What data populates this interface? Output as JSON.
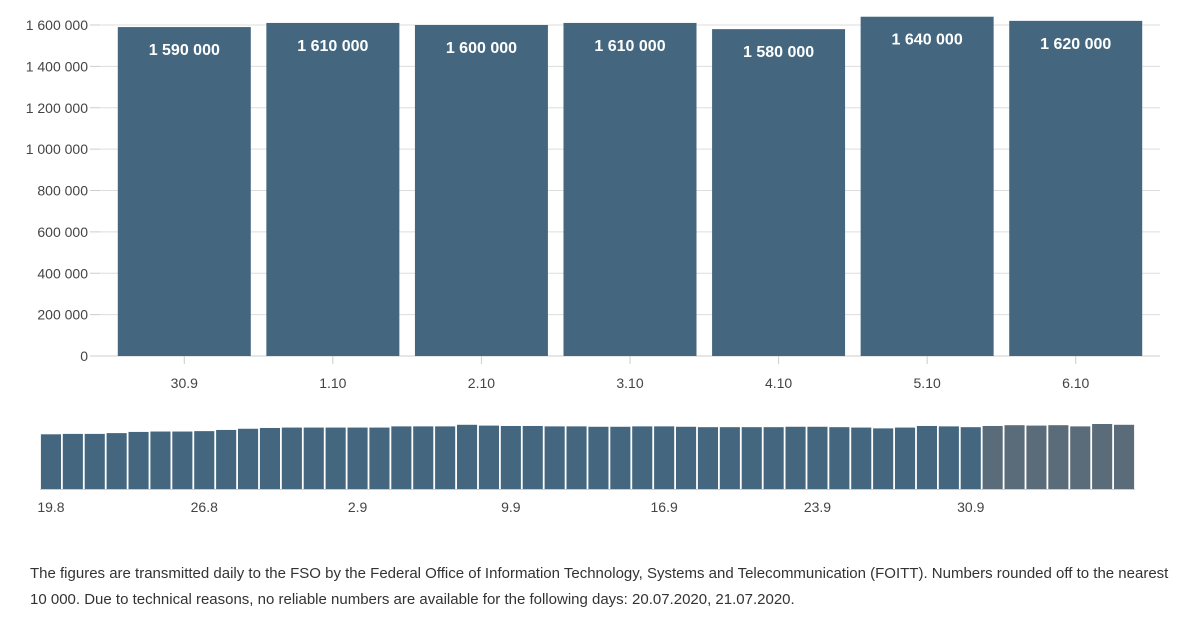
{
  "colors": {
    "bar": "#44677f",
    "bar_selected": "#5a6c7a",
    "grid": "#dddddd",
    "axis": "#cccccc",
    "tick_text": "#444444",
    "label_text": "#ffffff"
  },
  "chart_data": [
    {
      "type": "bar",
      "categories": [
        "30.9",
        "1.10",
        "2.10",
        "3.10",
        "4.10",
        "5.10",
        "6.10"
      ],
      "values": [
        1590000,
        1610000,
        1600000,
        1610000,
        1580000,
        1640000,
        1620000
      ],
      "data_labels": [
        "1 590 000",
        "1 610 000",
        "1 600 000",
        "1 610 000",
        "1 580 000",
        "1 640 000",
        "1 620 000"
      ],
      "ylim": [
        0,
        1600000
      ],
      "yticks": [
        0,
        200000,
        400000,
        600000,
        800000,
        1000000,
        1200000,
        1400000,
        1600000
      ],
      "ytick_labels": [
        "0",
        "200 000",
        "400 000",
        "600 000",
        "800 000",
        "1 000 000",
        "1 200 000",
        "1 400 000",
        "1 600 000"
      ],
      "grid": true,
      "title": "",
      "xlabel": "",
      "ylabel": ""
    },
    {
      "type": "bar",
      "role": "navigator",
      "x_tick_labels": [
        "19.8",
        "26.8",
        "2.9",
        "9.9",
        "16.9",
        "23.9",
        "30.9"
      ],
      "x_tick_bar_index": [
        0,
        7,
        14,
        21,
        28,
        35,
        42
      ],
      "values": [
        1380000,
        1390000,
        1390000,
        1410000,
        1440000,
        1450000,
        1450000,
        1460000,
        1490000,
        1520000,
        1540000,
        1550000,
        1550000,
        1550000,
        1550000,
        1550000,
        1580000,
        1580000,
        1580000,
        1620000,
        1600000,
        1590000,
        1590000,
        1580000,
        1580000,
        1570000,
        1570000,
        1580000,
        1580000,
        1570000,
        1560000,
        1560000,
        1560000,
        1560000,
        1570000,
        1570000,
        1560000,
        1550000,
        1530000,
        1550000,
        1590000,
        1580000,
        1560000,
        1590000,
        1610000,
        1600000,
        1610000,
        1580000,
        1640000,
        1620000
      ],
      "selected_range": [
        43,
        49
      ],
      "ylim": [
        0,
        1640000
      ]
    }
  ],
  "footnote": "The figures are transmitted daily to the FSO by the Federal Office of Information Technology, Systems and Telecommunication (FOITT). Numbers rounded off to the nearest 10 000. Due to technical reasons, no reliable numbers are available for the following days: 20.07.2020, 21.07.2020."
}
